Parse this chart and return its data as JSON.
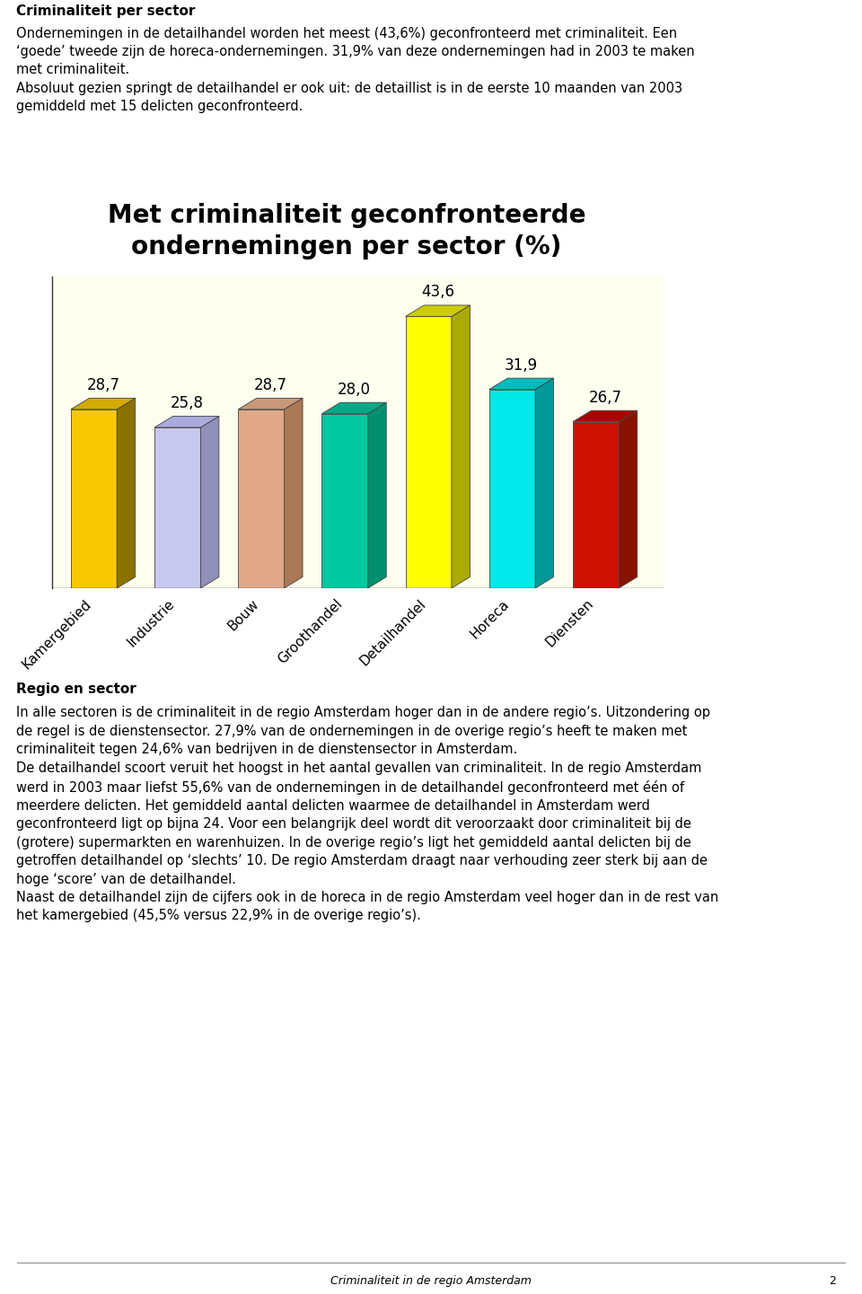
{
  "title": "Met criminaliteit geconfronteerde\nondernemingen per sector (%)",
  "categories": [
    "Kamergebied",
    "Industrie",
    "Bouw",
    "Groothandel",
    "Detailhandel",
    "Horeca",
    "Diensten"
  ],
  "values": [
    28.7,
    25.8,
    28.7,
    28.0,
    43.6,
    31.9,
    26.7
  ],
  "bar_face_colors": [
    "#F5C800",
    "#C8C8F0",
    "#E0A888",
    "#00C8A0",
    "#FFFF00",
    "#00E8E8",
    "#CC1100"
  ],
  "bar_side_colors": [
    "#8B7200",
    "#9090B8",
    "#AA7855",
    "#009070",
    "#AAAA00",
    "#009898",
    "#881100"
  ],
  "bar_top_colors": [
    "#D4AA00",
    "#AAAADD",
    "#C89878",
    "#00A888",
    "#CCCC00",
    "#00BBBB",
    "#AA0000"
  ],
  "chart_bg_color": "#FFFFF0",
  "page_bg": "#FFFFFF",
  "title_fontsize": 20,
  "value_fontsize": 12,
  "tick_fontsize": 11,
  "header_text1": "Criminaliteit per sector",
  "header_text2_lines": [
    "Ondernemingen in de detailhandel worden het meest (43,6%) geconfronteerd met criminaliteit. Een",
    "‘goede’ tweede zijn de horeca-ondernemingen. 31,9% van deze ondernemingen had in 2003 te maken",
    "met criminaliteit.",
    "Absoluut gezien springt de detailhandel er ook uit: de detaillist is in de eerste 10 maanden van 2003",
    "gemiddeld met 15 delicten geconfronteerd."
  ],
  "footer_text": "Criminaliteit in de regio Amsterdam",
  "footer_page": "2",
  "section2_bold": "Regio en sector",
  "section2_text_lines": [
    "In alle sectoren is de criminaliteit in de regio Amsterdam hoger dan in de andere regio’s. Uitzondering op",
    "de regel is de dienstensector. 27,9% van de ondernemingen in de overige regio’s heeft te maken met",
    "criminaliteit tegen 24,6% van bedrijven in de dienstensector in Amsterdam.",
    "De detailhandel scoort veruit het hoogst in het aantal gevallen van criminaliteit. In de regio Amsterdam",
    "werd in 2003 maar liefst 55,6% van de ondernemingen in de detailhandel geconfronteerd met één of",
    "meerdere delicten. Het gemiddeld aantal delicten waarmee de detailhandel in Amsterdam werd",
    "geconfronteerd ligt op bijna 24. Voor een belangrijk deel wordt dit veroorzaakt door criminaliteit bij de",
    "(grotere) supermarkten en warenhuizen. In de overige regio’s ligt het gemiddeld aantal delicten bij de",
    "getroffen detailhandel op ‘slechts’ 10. De regio Amsterdam draagt naar verhouding zeer sterk bij aan de",
    "hoge ‘score’ van de detailhandel.",
    "Naast de detailhandel zijn de cijfers ook in de horeca in de regio Amsterdam veel hoger dan in de rest van",
    "het kamergebied (45,5% versus 22,9% in de overige regio’s)."
  ]
}
